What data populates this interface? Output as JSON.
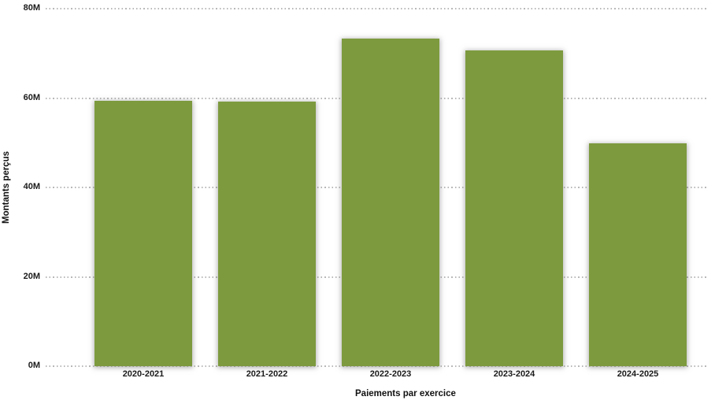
{
  "chart_data": {
    "type": "bar",
    "title": "",
    "categories": [
      "2020-2021",
      "2021-2022",
      "2022-2023",
      "2023-2024",
      "2024-2025"
    ],
    "values": [
      59.4,
      59.2,
      73.3,
      70.7,
      49.9
    ],
    "unit": "M",
    "xlabel": "Paiements par exercice",
    "ylabel": "Montants perçus",
    "ylim": [
      0,
      80
    ],
    "yticks": [
      0,
      20,
      40,
      60,
      80
    ],
    "ytick_labels": [
      "0M",
      "20M",
      "40M",
      "60M",
      "80M"
    ],
    "grid": "horizontal-dotted",
    "legend": "none",
    "bar_color": "#7D9A3E"
  },
  "colors": {
    "background": "#ffffff",
    "bar": "#7D9A3E",
    "gridline": "#ababab",
    "text": "#1a1a1a"
  }
}
